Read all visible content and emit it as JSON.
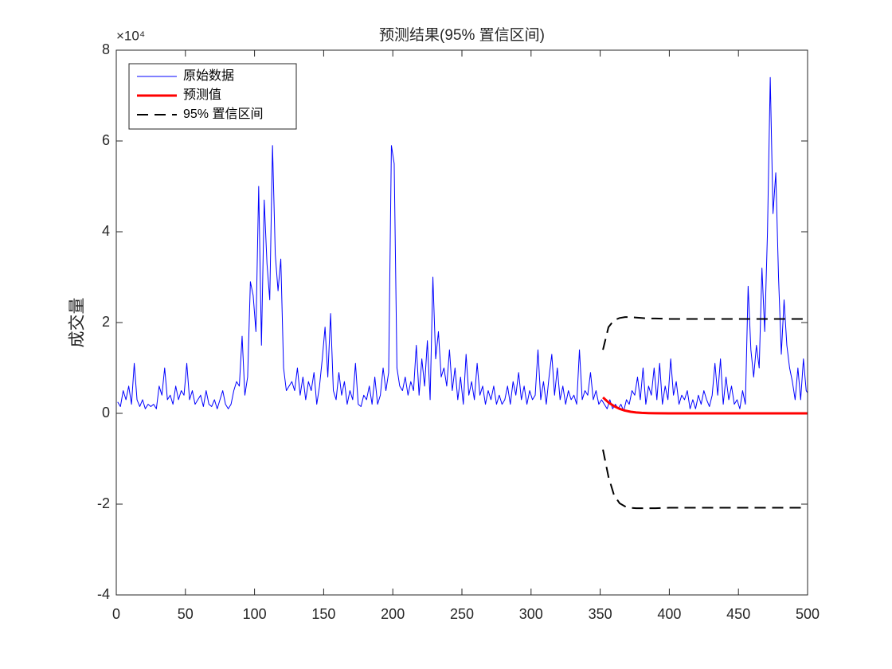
{
  "chart_data": {
    "type": "line",
    "title": "预测结果(95% 置信区间)",
    "y_label": "成交量",
    "y_exponent_label": "×10⁴",
    "xlim": [
      0,
      500
    ],
    "xticks": [
      0,
      50,
      100,
      150,
      200,
      250,
      300,
      350,
      400,
      450,
      500
    ],
    "ylim": [
      -40000,
      80000
    ],
    "yticks": [
      {
        "value": -40000,
        "label": "-4"
      },
      {
        "value": -20000,
        "label": "-2"
      },
      {
        "value": 0,
        "label": "0"
      },
      {
        "value": 20000,
        "label": "2"
      },
      {
        "value": 40000,
        "label": "4"
      },
      {
        "value": 60000,
        "label": "6"
      },
      {
        "value": 80000,
        "label": "8"
      }
    ],
    "grid": false,
    "legend_position": "upper-left",
    "series": [
      {
        "name": "原始数据",
        "color": "#0000ff",
        "line_width": 1,
        "line_style": "solid",
        "x": [
          1,
          3,
          5,
          7,
          9,
          11,
          13,
          15,
          17,
          19,
          21,
          23,
          25,
          27,
          29,
          31,
          33,
          35,
          37,
          39,
          41,
          43,
          45,
          47,
          49,
          51,
          53,
          55,
          57,
          59,
          61,
          63,
          65,
          67,
          69,
          71,
          73,
          75,
          77,
          79,
          81,
          83,
          85,
          87,
          89,
          91,
          93,
          95,
          97,
          99,
          101,
          103,
          105,
          107,
          109,
          111,
          113,
          115,
          117,
          119,
          121,
          123,
          125,
          127,
          129,
          131,
          133,
          135,
          137,
          139,
          141,
          143,
          145,
          147,
          149,
          151,
          153,
          155,
          157,
          159,
          161,
          163,
          165,
          167,
          169,
          171,
          173,
          175,
          177,
          179,
          181,
          183,
          185,
          187,
          189,
          191,
          193,
          195,
          197,
          199,
          201,
          203,
          205,
          207,
          209,
          211,
          213,
          215,
          217,
          219,
          221,
          223,
          225,
          227,
          229,
          231,
          233,
          235,
          237,
          239,
          241,
          243,
          245,
          247,
          249,
          251,
          253,
          255,
          257,
          259,
          261,
          263,
          265,
          267,
          269,
          271,
          273,
          275,
          277,
          279,
          281,
          283,
          285,
          287,
          289,
          291,
          293,
          295,
          297,
          299,
          301,
          303,
          305,
          307,
          309,
          311,
          313,
          315,
          317,
          319,
          321,
          323,
          325,
          327,
          329,
          331,
          333,
          335,
          337,
          339,
          341,
          343,
          345,
          347,
          349,
          351,
          353,
          355,
          357,
          359,
          361,
          363,
          365,
          367,
          369,
          371,
          373,
          375,
          377,
          379,
          381,
          383,
          385,
          387,
          389,
          391,
          393,
          395,
          397,
          399,
          401,
          403,
          405,
          407,
          409,
          411,
          413,
          415,
          417,
          419,
          421,
          423,
          425,
          427,
          429,
          431,
          433,
          435,
          437,
          439,
          441,
          443,
          445,
          447,
          449,
          451,
          453,
          455,
          457,
          459,
          461,
          463,
          465,
          467,
          469,
          471,
          473,
          475,
          477,
          479,
          481,
          483,
          485,
          487,
          489,
          491,
          493,
          495,
          497,
          499,
          500
        ],
        "values": [
          2500,
          1500,
          5000,
          3000,
          6000,
          2000,
          11000,
          3000,
          1500,
          3000,
          1000,
          2000,
          1500,
          2000,
          1000,
          6000,
          4000,
          10000,
          3000,
          4000,
          2000,
          6000,
          3000,
          5000,
          4000,
          11000,
          3000,
          5000,
          2000,
          3000,
          4000,
          1500,
          5000,
          2000,
          1500,
          3000,
          1000,
          3000,
          5000,
          2000,
          1000,
          2000,
          5000,
          7000,
          6000,
          17000,
          4000,
          8000,
          29000,
          26000,
          18000,
          50000,
          15000,
          47000,
          33000,
          25000,
          59000,
          35000,
          27000,
          34000,
          10000,
          5000,
          6000,
          7000,
          5000,
          10000,
          4000,
          8000,
          3000,
          7000,
          5000,
          9000,
          2000,
          6000,
          12000,
          19000,
          8000,
          22000,
          5000,
          3000,
          9000,
          4000,
          7000,
          2000,
          5000,
          3000,
          11000,
          2000,
          1500,
          4000,
          3000,
          6000,
          2000,
          8000,
          2000,
          4000,
          10000,
          5000,
          9000,
          59000,
          55000,
          10000,
          6000,
          5000,
          8000,
          4000,
          7000,
          5000,
          15000,
          4000,
          12000,
          6000,
          16000,
          3000,
          30000,
          12000,
          18000,
          8000,
          10000,
          6000,
          14000,
          5000,
          10000,
          3000,
          8000,
          2000,
          13000,
          4000,
          7000,
          3000,
          11000,
          4000,
          6000,
          2000,
          5000,
          3000,
          6000,
          2000,
          4000,
          2000,
          3000,
          6000,
          2000,
          7000,
          4000,
          9000,
          3000,
          6000,
          2000,
          5000,
          3000,
          4000,
          14000,
          3000,
          7000,
          2000,
          8000,
          13000,
          4000,
          10000,
          3000,
          6000,
          2000,
          5000,
          3000,
          4000,
          2000,
          14000,
          3000,
          5000,
          4000,
          9000,
          3000,
          5000,
          2000,
          3000,
          2000,
          1000,
          3000,
          1000,
          2000,
          1000,
          2000,
          500,
          3000,
          2000,
          5000,
          4000,
          8000,
          3000,
          10000,
          2000,
          6000,
          4000,
          10000,
          3000,
          11000,
          2000,
          6000,
          3000,
          12000,
          4000,
          7000,
          2000,
          4000,
          3000,
          5000,
          1000,
          3000,
          1000,
          4000,
          2000,
          5000,
          3000,
          1500,
          4000,
          11000,
          4000,
          12000,
          2000,
          8000,
          3000,
          6000,
          2000,
          3000,
          1000,
          5000,
          2000,
          28000,
          14000,
          8000,
          15000,
          10000,
          32000,
          18000,
          40000,
          74000,
          44000,
          53000,
          30000,
          13000,
          25000,
          15000,
          10000,
          7000,
          3000,
          10000,
          3000,
          12000,
          5000,
          4500
        ]
      },
      {
        "name": "预测值",
        "color": "#ff0000",
        "line_width": 3,
        "line_style": "solid",
        "x": [
          352,
          356,
          360,
          364,
          368,
          372,
          376,
          380,
          385,
          390,
          400,
          420,
          450,
          500
        ],
        "values": [
          3500,
          2400,
          1600,
          1000,
          600,
          350,
          200,
          100,
          50,
          20,
          0,
          0,
          0,
          0
        ]
      },
      {
        "name": "95% 置信区间",
        "color": "#000000",
        "line_width": 2,
        "line_style": "dashed",
        "x": [
          352,
          356,
          360,
          364,
          368,
          372,
          376,
          380,
          385,
          390,
          400,
          420,
          450,
          500
        ],
        "upper": [
          14000,
          19000,
          20500,
          21000,
          21200,
          21200,
          21100,
          21000,
          20900,
          20900,
          20800,
          20800,
          20800,
          20800
        ],
        "lower": [
          -8000,
          -14000,
          -18000,
          -19800,
          -20500,
          -20800,
          -20900,
          -20900,
          -20900,
          -20900,
          -20800,
          -20800,
          -20800,
          -20800
        ]
      }
    ]
  }
}
